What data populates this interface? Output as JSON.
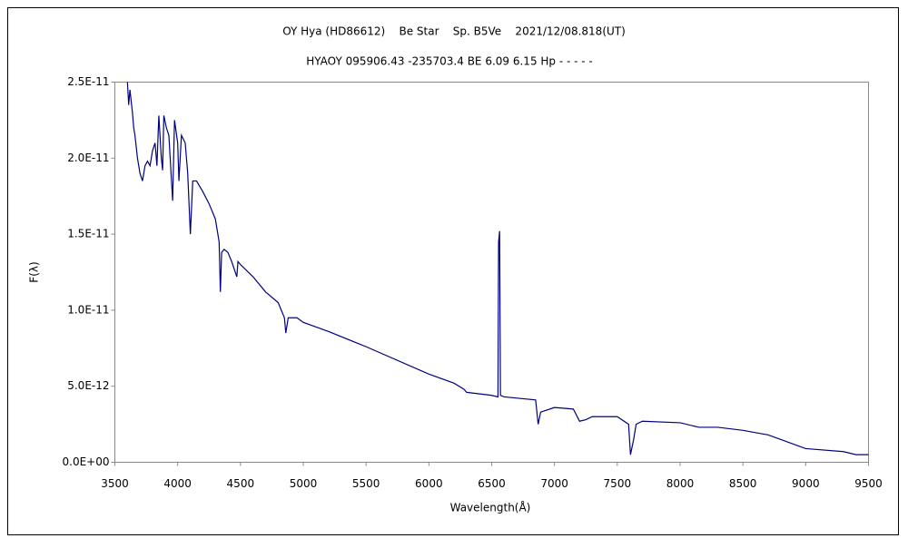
{
  "chart_data": {
    "type": "line",
    "title": "OY Hya (HD86612)    Be Star    Sp. B5Ve    2021/12/08.818(UT)",
    "subtitle": "HYAOY 095906.43 -235703.4 BE 6.09 6.15 Hp - - - - -",
    "x_label": "Wavelength(Å)",
    "y_label": "F(λ)",
    "grid": false,
    "xlim": [
      3500,
      9500
    ],
    "xticks": [
      3500,
      4000,
      4500,
      5000,
      5500,
      6000,
      6500,
      7000,
      7500,
      8000,
      8500,
      9000,
      9500
    ],
    "ylim": [
      0,
      2.5e-11
    ],
    "yticks": [
      {
        "value": 0,
        "label": "0.0E+00"
      },
      {
        "value": 5e-12,
        "label": "5.0E-12"
      },
      {
        "value": 1e-11,
        "label": "1.0E-11"
      },
      {
        "value": 1.5e-11,
        "label": "1.5E-11"
      },
      {
        "value": 2e-11,
        "label": "2.0E-11"
      },
      {
        "value": 2.5e-11,
        "label": "2.5E-11"
      }
    ],
    "series": [
      {
        "color": "#000080",
        "x": [
          3600,
          3610,
          3620,
          3640,
          3650,
          3660,
          3680,
          3700,
          3720,
          3740,
          3760,
          3780,
          3800,
          3820,
          3835,
          3850,
          3870,
          3880,
          3890,
          3910,
          3930,
          3960,
          3975,
          4000,
          4010,
          4030,
          4060,
          4080,
          4101,
          4120,
          4150,
          4200,
          4250,
          4300,
          4330,
          4340,
          4350,
          4370,
          4400,
          4430,
          4471,
          4480,
          4500,
          4600,
          4700,
          4800,
          4850,
          4861,
          4880,
          4950,
          5000,
          5200,
          5500,
          6000,
          6200,
          6280,
          6300,
          6500,
          6550,
          6555,
          6563,
          6570,
          6600,
          6850,
          6870,
          6890,
          7000,
          7150,
          7200,
          7250,
          7300,
          7500,
          7590,
          7605,
          7630,
          7650,
          7700,
          8000,
          8150,
          8300,
          8500,
          8700,
          8800,
          9000,
          9300,
          9400,
          9500
        ],
        "values": [
          2.5e-11,
          2.35e-11,
          2.45e-11,
          2.3e-11,
          2.2e-11,
          2.15e-11,
          2e-11,
          1.9e-11,
          1.85e-11,
          1.95e-11,
          1.98e-11,
          1.95e-11,
          2.05e-11,
          2.1e-11,
          1.95e-11,
          2.28e-11,
          2e-11,
          1.92e-11,
          2.28e-11,
          2.2e-11,
          2.15e-11,
          1.72e-11,
          2.25e-11,
          2.1e-11,
          1.85e-11,
          2.15e-11,
          2.1e-11,
          1.9e-11,
          1.5e-11,
          1.85e-11,
          1.85e-11,
          1.78e-11,
          1.7e-11,
          1.6e-11,
          1.45e-11,
          1.12e-11,
          1.38e-11,
          1.4e-11,
          1.38e-11,
          1.32e-11,
          1.22e-11,
          1.32e-11,
          1.3e-11,
          1.22e-11,
          1.12e-11,
          1.05e-11,
          9.5e-12,
          8.5e-12,
          9.5e-12,
          9.5e-12,
          9.2e-12,
          8.6e-12,
          7.6e-12,
          5.8e-12,
          5.2e-12,
          4.8e-12,
          4.6e-12,
          4.4e-12,
          4.3e-12,
          1.45e-11,
          1.52e-11,
          4.4e-12,
          4.3e-12,
          4.1e-12,
          2.5e-12,
          3.3e-12,
          3.6e-12,
          3.5e-12,
          2.7e-12,
          2.8e-12,
          3e-12,
          3e-12,
          2.5e-12,
          5e-13,
          1.5e-12,
          2.5e-12,
          2.7e-12,
          2.6e-12,
          2.3e-12,
          2.3e-12,
          2.1e-12,
          1.8e-12,
          1.5e-12,
          9e-13,
          7e-13,
          5e-13,
          5e-13
        ]
      }
    ]
  }
}
